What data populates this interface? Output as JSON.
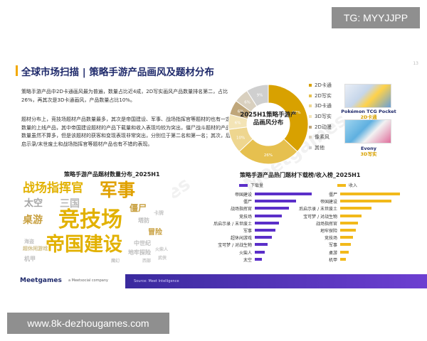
{
  "overlay": {
    "tg_label": "TG: MYYJJPP",
    "url_label": "www.8k-dezhougames.com"
  },
  "slide": {
    "title": "全球市场扫描 | 策略手游产品画风及题材分布",
    "page_number": "13",
    "paragraph1": "策略手游产品中2D卡通画风最为普遍，数量占比近4成，2D写实画风产品数量排名第二，占比26%，再其次是3D卡通画风，产品数量占比10%。",
    "paragraph2": "题材分布上，竞技场题材产品数量最多，其次是帝国建设、军事、战场指挥官等题材的也有一定数量的上线产品，其中帝国建设题材的产品下载量和收入表现均较为突出，僵尸战斗题材的产品数量虽然不算多，但是该题材的获客和变现表现非常突出，分别位于第二名和第一名；其次，后启示录/末世废土和战场指挥官等题材产品也有不错的表现。"
  },
  "donut": {
    "center_label": "2025H1策略手游产品画风分布",
    "colors": [
      "#d8a100",
      "#e6c04f",
      "#eed68f",
      "#f3e4b6",
      "#bfa67a",
      "#d9d0bf",
      "#cfcfcf"
    ]
  },
  "chart_data": [
    {
      "type": "pie",
      "title": "2025H1策略手游产品画风分布",
      "categories": [
        "2D卡通",
        "2D写实",
        "3D卡通",
        "3D写实",
        "2D动漫",
        "像素风",
        "其他"
      ],
      "values": [
        37,
        26,
        10,
        6,
        6,
        6,
        9
      ],
      "labels": [
        "37%",
        "26%",
        "10%",
        "6%",
        "6%",
        "6%",
        "9%"
      ],
      "legend_position": "right"
    },
    {
      "type": "bar",
      "title": "策略手游产品热门题材下载榜/收入榜_2025H1",
      "series": [
        {
          "name": "下载量",
          "categories": [
            "帝国建设",
            "僵尸",
            "战场指挥官",
            "竞技场",
            "后启示录 / 末世废土",
            "军事",
            "超休闲游戏",
            "宝可梦 / 对战生物",
            "火柴人",
            "太空"
          ],
          "values": [
            100,
            72,
            60,
            48,
            42,
            36,
            30,
            22,
            18,
            12
          ]
        },
        {
          "name": "收入",
          "categories": [
            "僵尸",
            "帝国建设",
            "后启示录 / 末世废土",
            "宝可梦 / 对战生物",
            "战场指挥官",
            "地牢探险",
            "竞技场",
            "军事",
            "桌游",
            "机甲"
          ],
          "values": [
            100,
            86,
            52,
            36,
            30,
            26,
            22,
            18,
            14,
            10
          ]
        }
      ],
      "legend_position": "top"
    }
  ],
  "legend_items": [
    "2D卡通",
    "2D写实",
    "3D卡通",
    "3D写实",
    "2D动漫",
    "像素风",
    "其他"
  ],
  "games": [
    {
      "name": "Pokémon TCG Pocket",
      "style": "2D卡通"
    },
    {
      "name": "Evony",
      "style": "3D写实"
    }
  ],
  "wordcloud": {
    "title": "策略手游产品题材数量分布_2025H1",
    "words": [
      {
        "text": "战场指挥官",
        "color": "#e2b100"
      },
      {
        "text": "军事",
        "color": "#e0a100"
      },
      {
        "text": "太空",
        "color": "#a6a6a6"
      },
      {
        "text": "三国",
        "color": "#b9b9b9"
      },
      {
        "text": "僵尸",
        "color": "#c8a040"
      },
      {
        "text": "桌游",
        "color": "#c8a040"
      },
      {
        "text": "竞技场",
        "color": "#e2b100"
      },
      {
        "text": "帝国建设",
        "color": "#e2b100"
      },
      {
        "text": "冒险",
        "color": "#c8a040"
      },
      {
        "text": "中世纪",
        "color": "#bdbdbd"
      },
      {
        "text": "地牢探险",
        "color": "#bdbdbd"
      },
      {
        "text": "机甲",
        "color": "#bdbdbd"
      },
      {
        "text": "超休闲游戏",
        "color": "#d1c08a"
      },
      {
        "text": "塔防",
        "color": "#bdbdbd"
      },
      {
        "text": "卡牌",
        "color": "#c6c6c6"
      },
      {
        "text": "海盗",
        "color": "#c6c6c6"
      },
      {
        "text": "火柴人",
        "color": "#c6c6c6"
      },
      {
        "text": "武侠",
        "color": "#c6c6c6"
      },
      {
        "text": "西部",
        "color": "#c6c6c6"
      },
      {
        "text": "魔幻",
        "color": "#c6c6c6"
      }
    ]
  },
  "bars": {
    "download_label": "下载量",
    "revenue_label": "收入",
    "download_color": "#5b2fc9",
    "revenue_color": "#f2b91a"
  },
  "footer": {
    "brand": "Meetgames",
    "company": "a Meetsocial company",
    "note": "Source: Meet Intelligence"
  }
}
